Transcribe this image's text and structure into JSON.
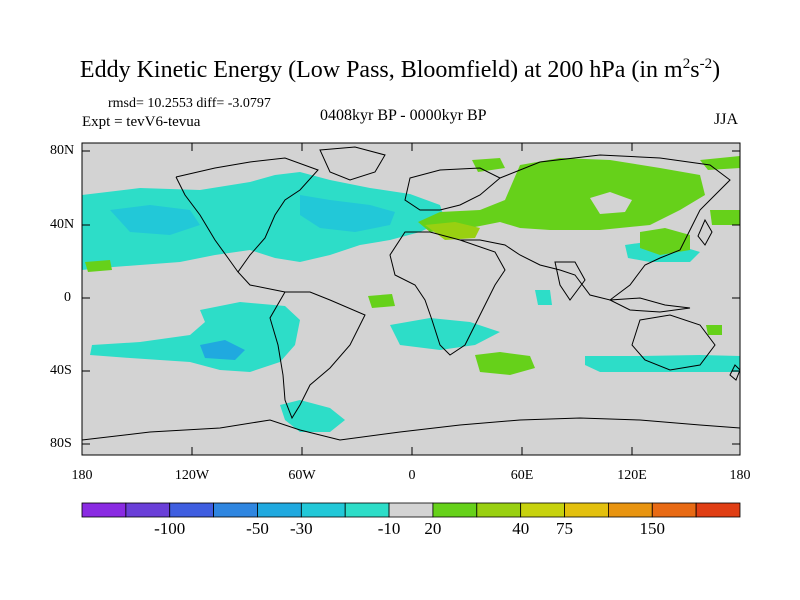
{
  "title": {
    "main": "Eddy Kinetic Energy (Low Pass, Bloomfield) at 200 hPa (in m",
    "sup1": "2",
    "mid": "s",
    "sup2": "-2",
    "close": ")"
  },
  "stats": {
    "rmsd_label": "rmsd=",
    "rmsd": "10.2553",
    "diff_label": "diff=",
    "diff": "-3.0797"
  },
  "experiment": "Expt = tevV6-tevua",
  "period": "0408kyr BP - 0000kyr BP",
  "season": "JJA",
  "lat_labels": [
    "80N",
    "40N",
    "0",
    "40S",
    "80S"
  ],
  "lon_labels": [
    "180",
    "120W",
    "60W",
    "0",
    "60E",
    "120E",
    "180"
  ],
  "colorbar": {
    "colors": [
      "#8a2be2",
      "#6a3fd8",
      "#3f5ee0",
      "#2f86e0",
      "#20a9df",
      "#22c8d8",
      "#2dddc8",
      "#d3d3d3",
      "#66d11a",
      "#99d011",
      "#c7d20e",
      "#e3c00e",
      "#e89410",
      "#e86a14",
      "#e03e14"
    ],
    "labels": [
      "-100",
      "-50",
      "-30",
      "-10",
      "20",
      "40",
      "75",
      "150"
    ]
  },
  "colors": {
    "land_ocean": "#d3d3d3",
    "teal": "#2dddc8",
    "cyan": "#22c8d8",
    "blue": "#20a9df",
    "green": "#66d11a",
    "lime": "#99d011"
  }
}
